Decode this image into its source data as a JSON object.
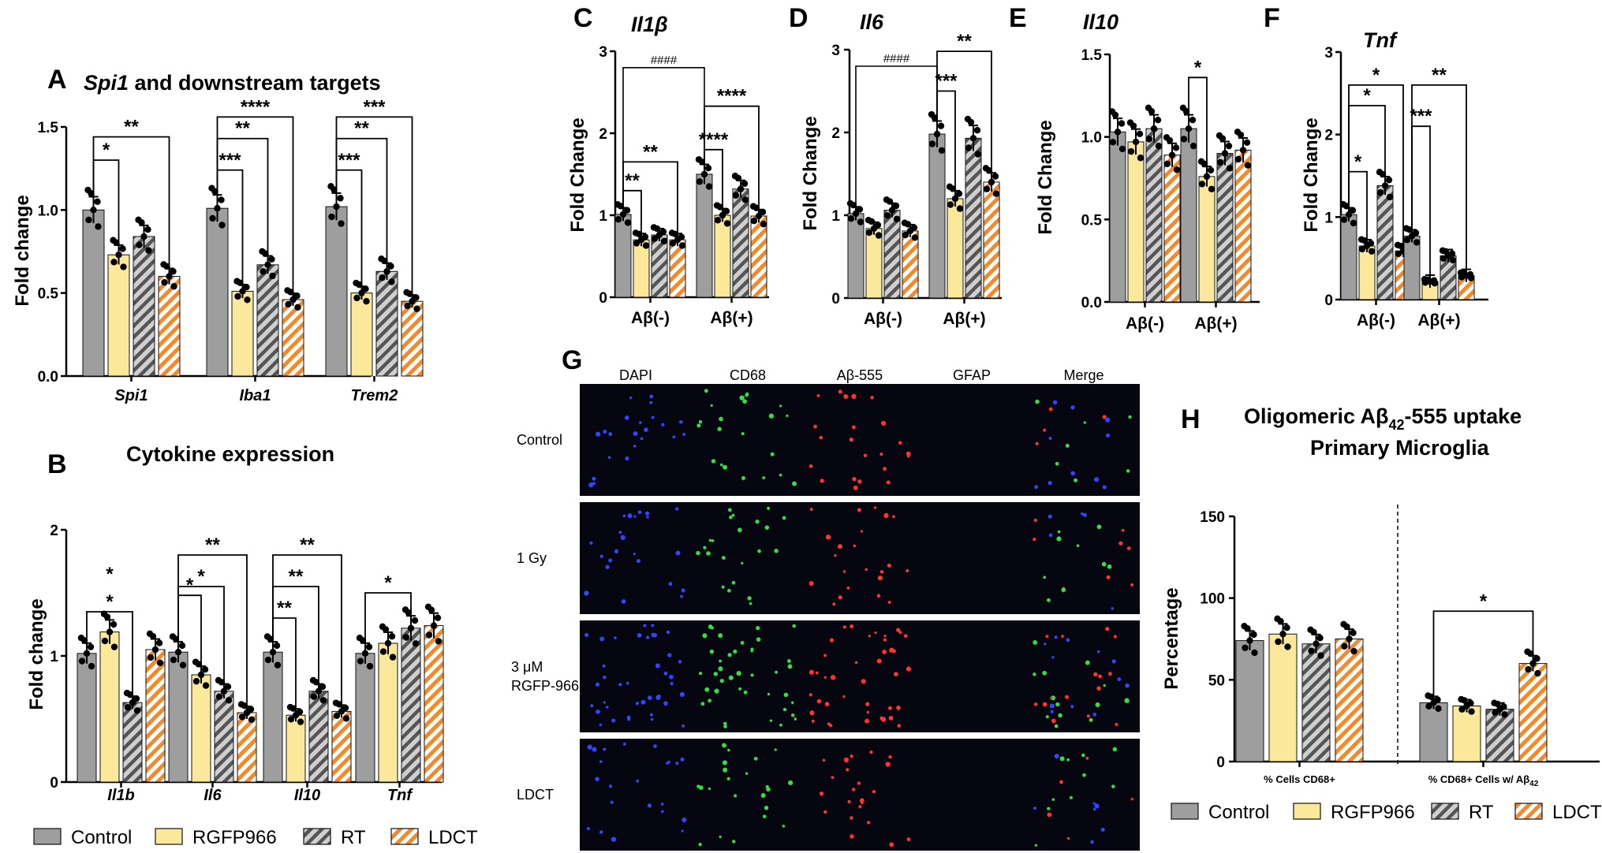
{
  "colors": {
    "control": "#9e9e9e",
    "rgfp": "#fbe89a",
    "rt_stripe": "#5a5a5a",
    "rt_base": "#c8c8c8",
    "ldct_stripe": "#f28a2b",
    "ldct_base": "#ffffff",
    "micro_bg": "#060610"
  },
  "legend": {
    "items": [
      {
        "key": "control",
        "label": "Control"
      },
      {
        "key": "rgfp",
        "label": "RGFP966"
      },
      {
        "key": "rt",
        "label": "RT"
      },
      {
        "key": "ldct",
        "label": "LDCT"
      }
    ]
  },
  "chart_data": [
    {
      "id": "A",
      "letter": "A",
      "type": "bar",
      "title_italic": "Spi1",
      "title_rest": " and downstream targets",
      "ylabel": "Fold change",
      "ylim": [
        0,
        1.5
      ],
      "yticks": [
        "0.0",
        "0.5",
        "1.0",
        "1.5"
      ],
      "categories": [
        "Spi1",
        "Iba1",
        "Trem2"
      ],
      "series": [
        {
          "name": "Control",
          "values": [
            1.0,
            1.01,
            1.02
          ]
        },
        {
          "name": "RGFP966",
          "values": [
            0.73,
            0.51,
            0.5
          ]
        },
        {
          "name": "RT",
          "values": [
            0.84,
            0.67,
            0.63
          ]
        },
        {
          "name": "LDCT",
          "values": [
            0.6,
            0.46,
            0.45
          ]
        }
      ],
      "significance": [
        {
          "group": 0,
          "from": 0,
          "to": 1,
          "y": 1.3,
          "label": "*"
        },
        {
          "group": 0,
          "from": 0,
          "to": 3,
          "y": 1.44,
          "label": "**"
        },
        {
          "group": 1,
          "from": 0,
          "to": 1,
          "y": 1.24,
          "label": "***"
        },
        {
          "group": 1,
          "from": 0,
          "to": 2,
          "y": 1.43,
          "label": "**"
        },
        {
          "group": 1,
          "from": 0,
          "to": 3,
          "y": 1.56,
          "label": "****"
        },
        {
          "group": 2,
          "from": 0,
          "to": 1,
          "y": 1.24,
          "label": "***"
        },
        {
          "group": 2,
          "from": 0,
          "to": 2,
          "y": 1.43,
          "label": "**"
        },
        {
          "group": 2,
          "from": 0,
          "to": 3,
          "y": 1.56,
          "label": "***"
        }
      ]
    },
    {
      "id": "B",
      "letter": "B",
      "type": "bar",
      "title": "Cytokine expression",
      "ylabel": "Fold change",
      "ylim": [
        0,
        2
      ],
      "yticks": [
        "0",
        "1",
        "2"
      ],
      "categories": [
        "Il1b",
        "Il6",
        "Il10",
        "Tnf"
      ],
      "series": [
        {
          "name": "Control",
          "values": [
            1.02,
            1.03,
            1.03,
            1.02
          ]
        },
        {
          "name": "RGFP966",
          "values": [
            1.19,
            0.85,
            0.53,
            1.1
          ]
        },
        {
          "name": "RT",
          "values": [
            0.63,
            0.72,
            0.72,
            1.22
          ]
        },
        {
          "name": "LDCT",
          "values": [
            1.05,
            0.55,
            0.56,
            1.24
          ]
        }
      ],
      "significance": [
        {
          "group": 0,
          "from": 0,
          "to": 2,
          "y": 1.35,
          "label": "*"
        },
        {
          "group": 1,
          "from": 0,
          "to": 1,
          "y": 1.48,
          "label": "*"
        },
        {
          "group": 1,
          "from": 0,
          "to": 2,
          "y": 1.55,
          "label": "*"
        },
        {
          "group": 1,
          "from": 0,
          "to": 3,
          "y": 1.8,
          "label": "**"
        },
        {
          "group": 2,
          "from": 0,
          "to": 1,
          "y": 1.3,
          "label": "**"
        },
        {
          "group": 2,
          "from": 0,
          "to": 2,
          "y": 1.55,
          "label": "**"
        },
        {
          "group": 2,
          "from": 0,
          "to": 3,
          "y": 1.8,
          "label": "**"
        },
        {
          "group": 3,
          "from": 0,
          "to": 2,
          "y": 1.5,
          "label": "*"
        }
      ],
      "extra_star": {
        "group": 0,
        "bar": 1,
        "y": 1.6,
        "label": "*"
      }
    },
    {
      "id": "C",
      "letter": "C",
      "type": "bar",
      "title": "Il1β",
      "ylabel": "Fold Change",
      "ylim": [
        0,
        3
      ],
      "yticks": [
        "0",
        "1",
        "2",
        "3"
      ],
      "categories": [
        "Aβ(-)",
        "Aβ(+)"
      ],
      "series": [
        {
          "name": "Control",
          "values": [
            1.01,
            1.5
          ]
        },
        {
          "name": "RGFP966",
          "values": [
            0.7,
            1.0
          ]
        },
        {
          "name": "RT",
          "values": [
            0.76,
            1.32
          ]
        },
        {
          "name": "LDCT",
          "values": [
            0.7,
            0.99
          ]
        }
      ],
      "significance": [
        {
          "group": 0,
          "from": 0,
          "to": 1,
          "y": 1.3,
          "label": "**"
        },
        {
          "group": 0,
          "from": 0,
          "to": 3,
          "y": 1.65,
          "label": "**"
        },
        {
          "group": 1,
          "from": 0,
          "to": 1,
          "y": 1.8,
          "label": "****"
        },
        {
          "group": 1,
          "from": 0,
          "to": 3,
          "y": 2.33,
          "label": "****"
        }
      ],
      "hash_bracket": {
        "y": 2.8,
        "label": "####"
      }
    },
    {
      "id": "D",
      "letter": "D",
      "type": "bar",
      "title": "Il6",
      "ylabel": "Fold Change",
      "ylim": [
        0,
        3
      ],
      "yticks": [
        "0",
        "1",
        "2",
        "3"
      ],
      "categories": [
        "Aβ(-)",
        "Aβ(+)"
      ],
      "series": [
        {
          "name": "Control",
          "values": [
            1.02,
            1.98
          ]
        },
        {
          "name": "RGFP966",
          "values": [
            0.84,
            1.2
          ]
        },
        {
          "name": "RT",
          "values": [
            1.06,
            1.93
          ]
        },
        {
          "name": "LDCT",
          "values": [
            0.81,
            1.4
          ]
        }
      ],
      "significance": [
        {
          "group": 1,
          "from": 0,
          "to": 1,
          "y": 2.5,
          "label": "***"
        },
        {
          "group": 1,
          "from": 0,
          "to": 3,
          "y": 2.98,
          "label": "**"
        }
      ],
      "hash_bracket": {
        "y": 2.8,
        "label": "####"
      }
    },
    {
      "id": "E",
      "letter": "E",
      "type": "bar",
      "title": "Il10",
      "ylabel": "Fold Change",
      "ylim": [
        0,
        1.5
      ],
      "yticks": [
        "0.0",
        "0.5",
        "1.0",
        "1.5"
      ],
      "categories": [
        "Aβ(-)",
        "Aβ(+)"
      ],
      "series": [
        {
          "name": "Control",
          "values": [
            1.03,
            1.05
          ]
        },
        {
          "name": "RGFP966",
          "values": [
            0.97,
            0.76
          ]
        },
        {
          "name": "RT",
          "values": [
            1.05,
            0.9
          ]
        },
        {
          "name": "LDCT",
          "values": [
            0.89,
            0.92
          ]
        }
      ],
      "significance": [
        {
          "group": 1,
          "from": 0,
          "to": 1,
          "y": 1.36,
          "label": "*"
        }
      ]
    },
    {
      "id": "F",
      "letter": "F",
      "type": "bar",
      "title": "Tnf",
      "ylabel": "Fold  Change",
      "ylim": [
        0,
        3
      ],
      "yticks": [
        "0",
        "1",
        "2",
        "3"
      ],
      "categories": [
        "Aβ(-)",
        "Aβ(+)"
      ],
      "series": [
        {
          "name": "Control",
          "values": [
            1.03,
            0.77
          ]
        },
        {
          "name": "RGFP966",
          "values": [
            0.65,
            0.22
          ]
        },
        {
          "name": "RT",
          "values": [
            1.38,
            0.53
          ]
        },
        {
          "name": "LDCT",
          "values": [
            0.59,
            0.29
          ]
        }
      ],
      "significance": [
        {
          "group": 0,
          "from": 0,
          "to": 1,
          "y": 1.55,
          "label": "*"
        },
        {
          "group": 0,
          "from": 0,
          "to": 2,
          "y": 2.35,
          "label": "*"
        },
        {
          "group": 0,
          "from": 0,
          "to": 3,
          "y": 2.6,
          "label": "*"
        },
        {
          "group": 1,
          "from": 0,
          "to": 1,
          "y": 2.1,
          "label": "***"
        },
        {
          "group": 1,
          "from": 0,
          "to": 3,
          "y": 2.6,
          "label": "**"
        }
      ]
    },
    {
      "id": "H",
      "letter": "H",
      "type": "bar",
      "title_line1": "Oligomeric Aβ",
      "title_sub": "42",
      "title_line1_rest": "-555 uptake",
      "title_line2": "Primary Microglia",
      "ylabel": "Percentage",
      "ylim": [
        0,
        150
      ],
      "yticks": [
        "0",
        "50",
        "100",
        "150"
      ],
      "categories": [
        "% Cells CD68+",
        "% CD68+ Cells w/ Aβ"
      ],
      "cat2_sub": "42",
      "series": [
        {
          "name": "Control",
          "values": [
            74,
            36
          ]
        },
        {
          "name": "RGFP966",
          "values": [
            78,
            34
          ]
        },
        {
          "name": "RT",
          "values": [
            72,
            32
          ]
        },
        {
          "name": "LDCT",
          "values": [
            75,
            60
          ]
        }
      ],
      "significance": [
        {
          "group": 1,
          "from": 0,
          "to": 3,
          "y": 92,
          "label": "*"
        }
      ]
    }
  ],
  "microscopy": {
    "letter": "G",
    "columns": [
      "DAPI",
      "CD68",
      "Aβ-555",
      "GFAP",
      "Merge"
    ],
    "rows": [
      {
        "label": "Control"
      },
      {
        "label": "1 Gy"
      },
      {
        "label": "3 μM",
        "label2": "RGFP-966"
      },
      {
        "label": "LDCT"
      }
    ]
  }
}
